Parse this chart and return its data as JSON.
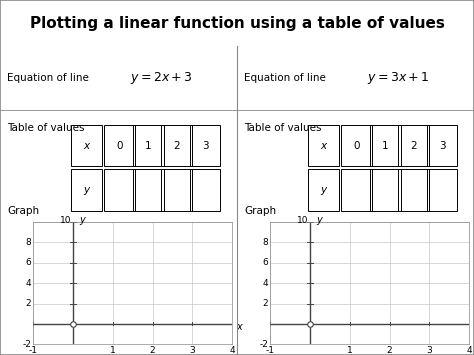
{
  "title": "Plotting a linear function using a table of values",
  "title_fontsize": 11,
  "title_bg": "#d8d8d8",
  "eq1_label": "Equation of line",
  "eq2_label": "Equation of line",
  "table_label": "Table of values",
  "graph_label": "Graph",
  "x_vals": [
    "x",
    "0",
    "1",
    "2",
    "3"
  ],
  "y_row": [
    "y",
    "",
    "",
    "",
    ""
  ],
  "graph_xlim": [
    -1,
    4
  ],
  "graph_ylim": [
    -2,
    10
  ],
  "graph_xticks": [
    -1,
    0,
    1,
    2,
    3,
    4
  ],
  "graph_yticks": [
    -2,
    0,
    2,
    4,
    6,
    8,
    10
  ],
  "bg_color": "#ffffff",
  "grid_color": "#c8c8c8",
  "axis_color": "#444444",
  "border_color": "#888888",
  "divider_color": "#888888",
  "text_color": "#000000"
}
